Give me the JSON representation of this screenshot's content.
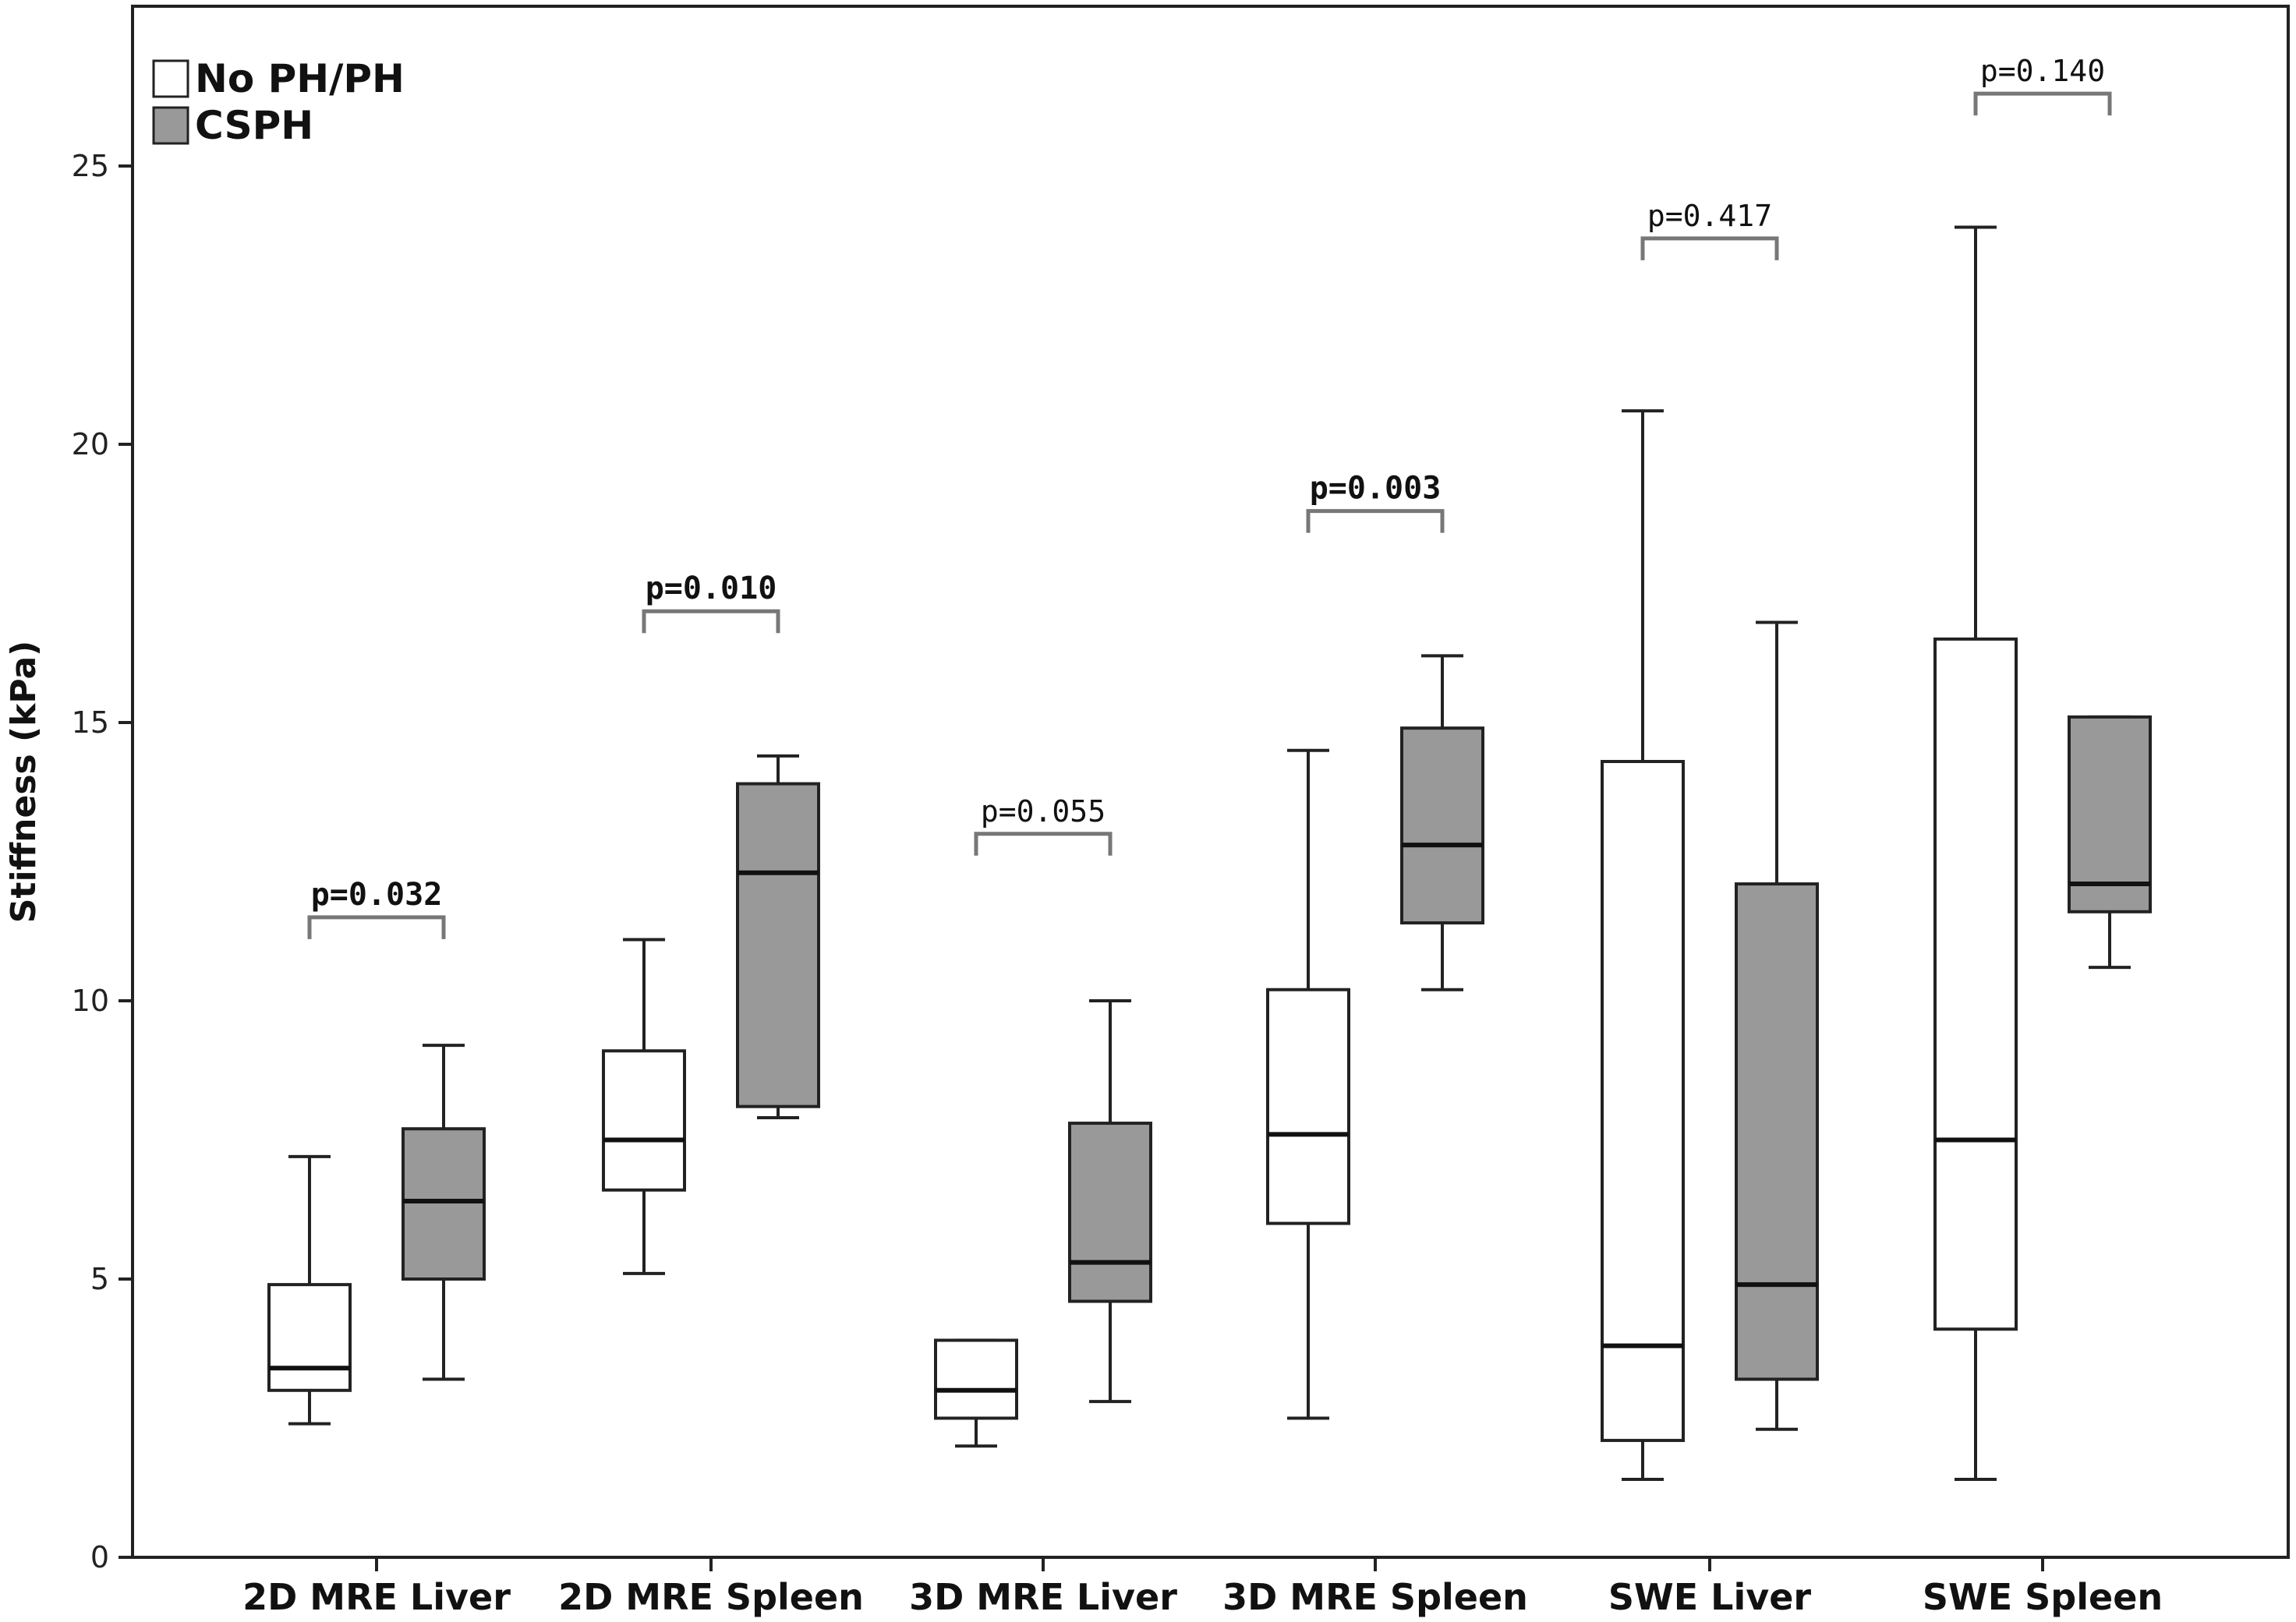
{
  "chart_data": {
    "type": "boxplot",
    "title": "",
    "xlabel": "",
    "ylabel": "Stiffness (kPa)",
    "ylim": [
      0,
      28
    ],
    "yticks": [
      0,
      5,
      10,
      15,
      20,
      25
    ],
    "legend": {
      "placement": "top-left",
      "entries": [
        {
          "name": "No PH/PH",
          "color": "#ffffff"
        },
        {
          "name": "CSPH",
          "color": "#999999"
        }
      ]
    },
    "categories": [
      "2D MRE Liver",
      "2D MRE Spleen",
      "3D MRE Liver",
      "3D MRE Spleen",
      "SWE Liver",
      "SWE Spleen"
    ],
    "series": [
      {
        "name": "No PH/PH",
        "color": "#ffffff",
        "boxes": [
          {
            "min": 2.4,
            "q1": 3.0,
            "median": 3.4,
            "q3": 4.9,
            "max": 7.2
          },
          {
            "min": 5.1,
            "q1": 6.6,
            "median": 7.5,
            "q3": 9.1,
            "max": 11.1
          },
          {
            "min": 2.0,
            "q1": 2.5,
            "median": 3.0,
            "q3": 3.9,
            "max": 3.9
          },
          {
            "min": 2.5,
            "q1": 6.0,
            "median": 7.6,
            "q3": 10.2,
            "max": 14.5
          },
          {
            "min": 1.4,
            "q1": 2.1,
            "median": 3.8,
            "q3": 14.3,
            "max": 20.6
          },
          {
            "min": 1.4,
            "q1": 4.1,
            "median": 7.5,
            "q3": 16.5,
            "max": 23.9
          }
        ]
      },
      {
        "name": "CSPH",
        "color": "#999999",
        "boxes": [
          {
            "min": 3.2,
            "q1": 5.0,
            "median": 6.4,
            "q3": 7.7,
            "max": 9.2
          },
          {
            "min": 7.9,
            "q1": 8.1,
            "median": 12.3,
            "q3": 13.9,
            "max": 14.4
          },
          {
            "min": 2.8,
            "q1": 4.6,
            "median": 5.3,
            "q3": 7.8,
            "max": 10.0
          },
          {
            "min": 10.2,
            "q1": 11.4,
            "median": 12.8,
            "q3": 14.9,
            "max": 16.2
          },
          {
            "min": 2.3,
            "q1": 3.2,
            "median": 4.9,
            "q3": 12.1,
            "max": 16.8
          },
          {
            "min": 10.6,
            "q1": 11.6,
            "median": 12.1,
            "q3": 15.1,
            "max": 15.1
          }
        ]
      }
    ],
    "annotations": [
      {
        "text": "p=0.032",
        "y": 11.5,
        "bold": true
      },
      {
        "text": "p=0.010",
        "y": 17.0,
        "bold": true
      },
      {
        "text": "p=0.055",
        "y": 13.0,
        "bold": false
      },
      {
        "text": "p=0.003",
        "y": 18.8,
        "bold": true
      },
      {
        "text": "p=0.417",
        "y": 23.7,
        "bold": false
      },
      {
        "text": "p=0.140",
        "y": 26.3,
        "bold": false
      }
    ]
  }
}
